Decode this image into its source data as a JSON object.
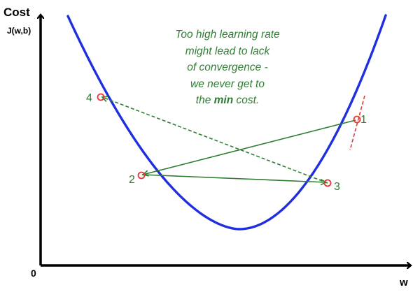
{
  "axes": {
    "y_label": "Cost",
    "y_sublabel": "J(w,b)",
    "x_label": "w",
    "origin_label": "0"
  },
  "annotation": {
    "lines": [
      "Too high learning rate",
      "might lead to lack",
      "of convergence -",
      "we never get to"
    ],
    "last_line_prefix": "the ",
    "last_line_bold": "min",
    "last_line_suffix": " cost."
  },
  "points": [
    {
      "label": "1"
    },
    {
      "label": "2"
    },
    {
      "label": "3"
    },
    {
      "label": "4"
    }
  ],
  "colors": {
    "curve": "#1f2fe0",
    "arrows": "#2e7d32",
    "points": "#e53935",
    "tangent": "#e53935",
    "text": "#2e7d32",
    "axis": "#000000"
  }
}
